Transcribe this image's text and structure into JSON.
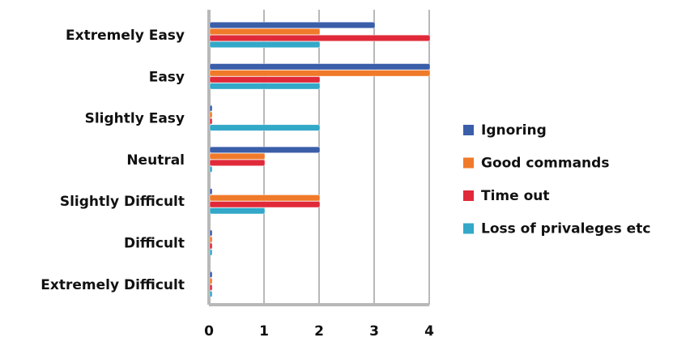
{
  "chart_data": {
    "type": "bar",
    "orientation": "horizontal",
    "categories": [
      "Extremely Easy",
      "Easy",
      "Slightly Easy",
      "Neutral",
      "Slightly Difficult",
      "Difficult",
      "Extremely Difficult"
    ],
    "series": [
      {
        "name": "Ignoring",
        "color": "#3b5ea9",
        "values": [
          3,
          4,
          0,
          2,
          0,
          0,
          0
        ]
      },
      {
        "name": "Good commands",
        "color": "#f07a2a",
        "values": [
          2,
          4,
          0,
          1,
          2,
          0,
          0
        ]
      },
      {
        "name": "Time out",
        "color": "#e02a3a",
        "values": [
          4,
          2,
          0,
          1,
          2,
          0,
          0
        ]
      },
      {
        "name": "Loss of privaleges etc",
        "color": "#33a8c8",
        "values": [
          2,
          2,
          2,
          0,
          1,
          0,
          0
        ]
      }
    ],
    "xlim": [
      0,
      4
    ],
    "xticks": [
      "0",
      "1",
      "2",
      "3",
      "4"
    ],
    "grid": true,
    "legend_position": "right",
    "title": "",
    "xlabel": "",
    "ylabel": ""
  }
}
